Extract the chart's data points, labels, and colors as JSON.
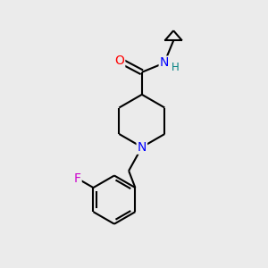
{
  "background_color": "#ebebeb",
  "bond_color": "#000000",
  "atom_colors": {
    "O": "#ff0000",
    "N": "#0000ff",
    "F": "#cc00cc",
    "H": "#008080",
    "C": "#000000"
  },
  "bond_width": 1.5,
  "figsize": [
    3.0,
    3.0
  ],
  "dpi": 100
}
